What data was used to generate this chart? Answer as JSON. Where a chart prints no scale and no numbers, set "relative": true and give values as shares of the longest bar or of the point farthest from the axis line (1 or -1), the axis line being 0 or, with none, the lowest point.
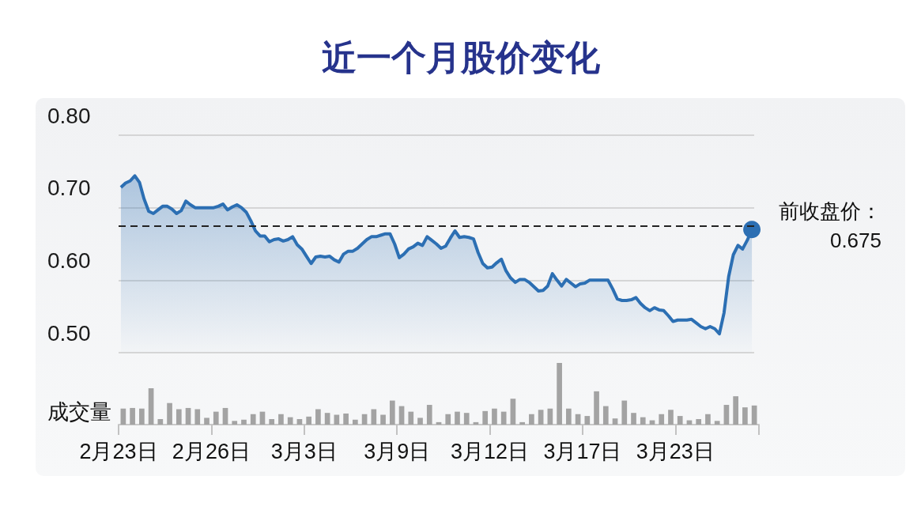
{
  "chart_data": [
    {
      "type": "area",
      "title": "近一个月股价变化",
      "categories": [
        null,
        null,
        null,
        null,
        null,
        null,
        null,
        null,
        null,
        null,
        null,
        null,
        null,
        null,
        null,
        null,
        null,
        null,
        null,
        null,
        null,
        null,
        null,
        null,
        null,
        null,
        null,
        null,
        null,
        null,
        null,
        null,
        null,
        null,
        null,
        null,
        null,
        null,
        null,
        null,
        null,
        null,
        null,
        null,
        null,
        null,
        null,
        null,
        null,
        null,
        null,
        null,
        null,
        null,
        null,
        null,
        null,
        null,
        null,
        null,
        null,
        null,
        null,
        null,
        null,
        null,
        null,
        null,
        null,
        null,
        null,
        null,
        null,
        null,
        null,
        null,
        null,
        null,
        null,
        null,
        null,
        null,
        null,
        null,
        null,
        null,
        null,
        null,
        null,
        null,
        null,
        null,
        null,
        null,
        null,
        null,
        null,
        null,
        null,
        null,
        null,
        null,
        null,
        null,
        null,
        null,
        null,
        null,
        null,
        null,
        null,
        null,
        null,
        null,
        null,
        null,
        null,
        null,
        null,
        null,
        null,
        null,
        null,
        null,
        null,
        null,
        null,
        null,
        null,
        null,
        null,
        null,
        null,
        null,
        null,
        null,
        null
      ],
      "series": [
        {
          "color": "#2c6fb3",
          "values": [
            0.728,
            0.734,
            0.737,
            0.744,
            0.735,
            0.712,
            0.695,
            0.692,
            0.697,
            0.702,
            0.702,
            0.698,
            0.692,
            0.696,
            0.709,
            0.704,
            0.7,
            0.7,
            0.7,
            0.7,
            0.7,
            0.702,
            0.705,
            0.697,
            0.701,
            0.704,
            0.7,
            0.694,
            0.682,
            0.668,
            0.661,
            0.661,
            0.653,
            0.656,
            0.657,
            0.654,
            0.656,
            0.66,
            0.649,
            0.643,
            0.633,
            0.623,
            0.632,
            0.633,
            0.632,
            0.633,
            0.628,
            0.625,
            0.636,
            0.64,
            0.64,
            0.644,
            0.65,
            0.656,
            0.66,
            0.66,
            0.662,
            0.664,
            0.664,
            0.65,
            0.631,
            0.636,
            0.643,
            0.646,
            0.651,
            0.648,
            0.66,
            0.655,
            0.65,
            0.644,
            0.647,
            0.658,
            0.668,
            0.659,
            0.66,
            0.659,
            0.657,
            0.638,
            0.623,
            0.617,
            0.618,
            0.624,
            0.629,
            0.613,
            0.603,
            0.597,
            0.601,
            0.601,
            0.597,
            0.591,
            0.585,
            0.586,
            0.592,
            0.609,
            0.6,
            0.592,
            0.601,
            0.596,
            0.591,
            0.595,
            0.596,
            0.6,
            0.6,
            0.6,
            0.6,
            0.6,
            0.588,
            0.574,
            0.572,
            0.572,
            0.573,
            0.576,
            0.568,
            0.562,
            0.558,
            0.562,
            0.559,
            0.558,
            0.551,
            0.543,
            0.545,
            0.545,
            0.545,
            0.546,
            0.541,
            0.536,
            0.533,
            0.536,
            0.533,
            0.526,
            0.555,
            0.605,
            0.635,
            0.648,
            0.643,
            0.655,
            0.67
          ]
        },
        {
          "type": "scatter",
          "marker": "circle",
          "color": "#2c6fb3",
          "values": [
            null,
            null,
            null,
            null,
            null,
            null,
            null,
            null,
            null,
            null,
            null,
            null,
            null,
            null,
            null,
            null,
            null,
            null,
            null,
            null,
            null,
            null,
            null,
            null,
            null,
            null,
            null,
            null,
            null,
            null,
            null,
            null,
            null,
            null,
            null,
            null,
            null,
            null,
            null,
            null,
            null,
            null,
            null,
            null,
            null,
            null,
            null,
            null,
            null,
            null,
            null,
            null,
            null,
            null,
            null,
            null,
            null,
            null,
            null,
            null,
            null,
            null,
            null,
            null,
            null,
            null,
            null,
            null,
            null,
            null,
            null,
            null,
            null,
            null,
            null,
            null,
            null,
            null,
            null,
            null,
            null,
            null,
            null,
            null,
            null,
            null,
            null,
            null,
            null,
            null,
            null,
            null,
            null,
            null,
            null,
            null,
            null,
            null,
            null,
            null,
            null,
            null,
            null,
            null,
            null,
            null,
            null,
            null,
            null,
            null,
            null,
            null,
            null,
            null,
            null,
            null,
            null,
            null,
            null,
            null,
            null,
            null,
            null,
            null,
            null,
            null,
            null,
            null,
            null,
            null,
            null,
            null,
            null,
            null,
            null,
            null,
            0.67
          ]
        }
      ],
      "ylim": [
        0.5,
        0.8
      ],
      "yticks": [
        {
          "value": 0.5,
          "label": "0.50"
        },
        {
          "value": 0.6,
          "label": "0.60"
        },
        {
          "value": 0.7,
          "label": "0.70"
        },
        {
          "value": 0.8,
          "label": "0.80"
        }
      ],
      "grid": "y",
      "ref_lines": [
        {
          "axis": "y",
          "value": 0.675,
          "label": "前收盘价：0.675",
          "color": "#222222",
          "line_style": "dashed"
        }
      ]
    },
    {
      "type": "bar",
      "ylabel": "成交量",
      "relative": true,
      "color": "#a3a3a3",
      "categories": [
        "2月23日",
        null,
        null,
        null,
        null,
        null,
        null,
        null,
        null,
        null,
        "2月26日",
        null,
        null,
        null,
        null,
        null,
        null,
        null,
        null,
        null,
        "3月3日",
        null,
        null,
        null,
        null,
        null,
        null,
        null,
        null,
        null,
        "3月9日",
        null,
        null,
        null,
        null,
        null,
        null,
        null,
        null,
        null,
        "3月12日",
        null,
        null,
        null,
        null,
        null,
        null,
        null,
        null,
        null,
        "3月17日",
        null,
        null,
        null,
        null,
        null,
        null,
        null,
        null,
        null,
        "3月23日",
        null,
        null,
        null,
        null,
        null,
        null,
        null,
        null
      ],
      "values": [
        0.26,
        0.27,
        0.26,
        0.59,
        0.09,
        0.35,
        0.25,
        0.27,
        0.25,
        0.11,
        0.21,
        0.27,
        0.06,
        0.08,
        0.17,
        0.21,
        0.09,
        0.17,
        0.12,
        0.09,
        0.13,
        0.25,
        0.19,
        0.16,
        0.18,
        0.08,
        0.17,
        0.25,
        0.16,
        0.39,
        0.3,
        0.21,
        0.11,
        0.32,
        0.04,
        0.17,
        0.21,
        0.19,
        0.04,
        0.22,
        0.26,
        0.21,
        0.42,
        0.04,
        0.17,
        0.24,
        0.26,
        1,
        0.26,
        0.17,
        0.14,
        0.54,
        0.3,
        0.1,
        0.39,
        0.19,
        0.12,
        0.07,
        0.17,
        0.24,
        0.14,
        0.07,
        0.09,
        0.17,
        0.06,
        0.32,
        0.46,
        0.28,
        0.31
      ]
    }
  ]
}
